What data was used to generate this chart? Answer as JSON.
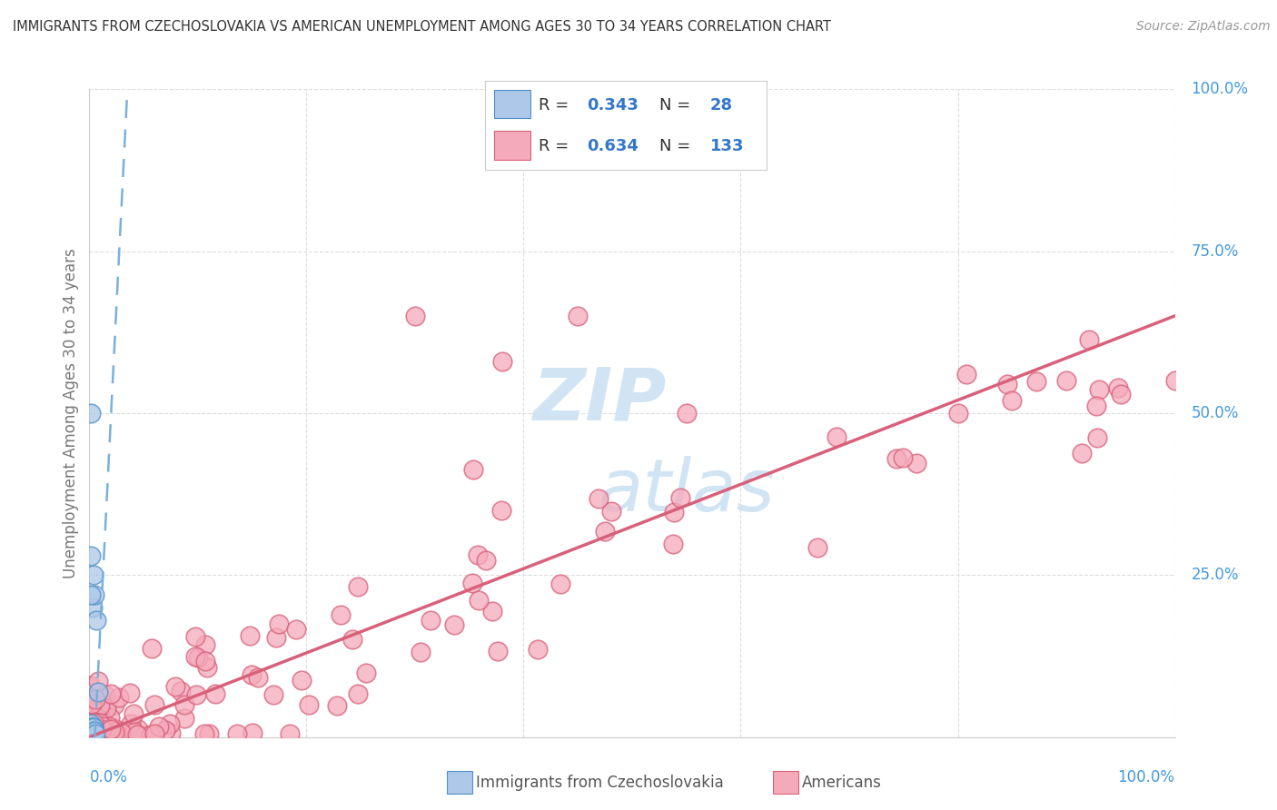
{
  "title": "IMMIGRANTS FROM CZECHOSLOVAKIA VS AMERICAN UNEMPLOYMENT AMONG AGES 30 TO 34 YEARS CORRELATION CHART",
  "source": "Source: ZipAtlas.com",
  "ylabel": "Unemployment Among Ages 30 to 34 years",
  "blue_R": 0.343,
  "blue_N": 28,
  "pink_R": 0.634,
  "pink_N": 133,
  "blue_color": "#adc8e8",
  "pink_color": "#f5aaba",
  "blue_edge": "#5090c8",
  "pink_edge": "#d8607a",
  "blue_line_color": "#7ab0dc",
  "pink_line_color": "#d8607a",
  "background_color": "#ffffff",
  "watermark_color": "#ddeeff",
  "grid_color": "#dddddd",
  "tick_label_color": "#4499dd",
  "ylabel_color": "#777777",
  "title_color": "#333333",
  "source_color": "#999999",
  "legend_text_color": "#333333",
  "legend_value_color": "#3377cc"
}
